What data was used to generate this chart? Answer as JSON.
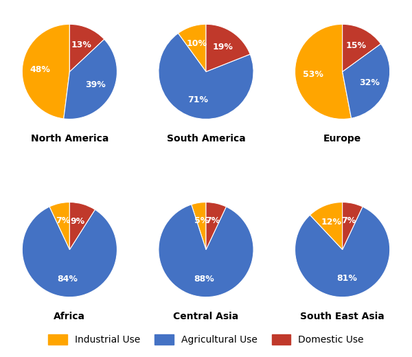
{
  "regions": [
    "North America",
    "South America",
    "Europe",
    "Africa",
    "Central Asia",
    "South East Asia"
  ],
  "values": [
    [
      48,
      39,
      13
    ],
    [
      10,
      71,
      19
    ],
    [
      53,
      32,
      15
    ],
    [
      7,
      84,
      9
    ],
    [
      5,
      88,
      7
    ],
    [
      12,
      81,
      7
    ]
  ],
  "labels": [
    [
      "48%",
      "39%",
      "13%"
    ],
    [
      "10%",
      "71%",
      "19%"
    ],
    [
      "53%",
      "32%",
      "15%"
    ],
    [
      "7%",
      "84%",
      "9%"
    ],
    [
      "5%",
      "88%",
      "7%"
    ],
    [
      "12%",
      "81%",
      "7%"
    ]
  ],
  "colors": [
    "#FFA500",
    "#4472C4",
    "#C0392B"
  ],
  "legend_labels": [
    "Industrial Use",
    "Agricultural Use",
    "Domestic Use"
  ],
  "grid_rows": 2,
  "grid_cols": 3,
  "figsize": [
    6.0,
    5.2
  ],
  "dpi": 100,
  "label_fontsize": 9,
  "region_fontsize": 10
}
